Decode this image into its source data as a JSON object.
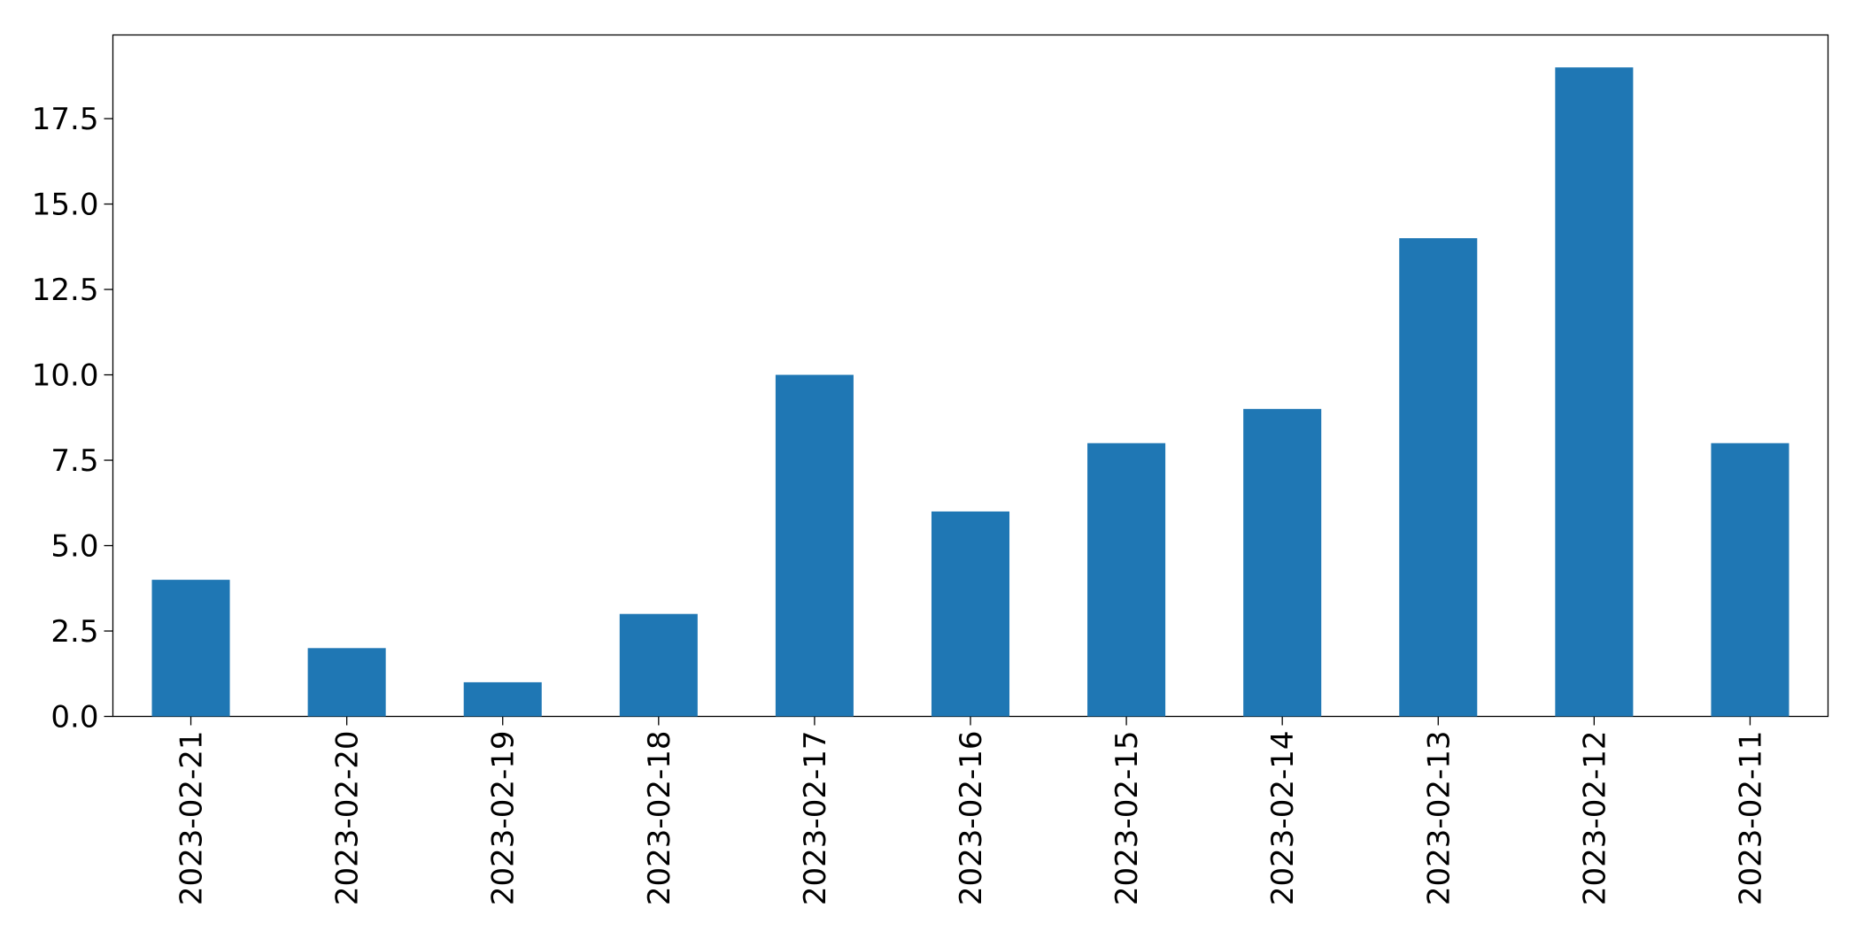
{
  "chart_data": {
    "type": "bar",
    "categories": [
      "2023-02-21",
      "2023-02-20",
      "2023-02-19",
      "2023-02-18",
      "2023-02-17",
      "2023-02-16",
      "2023-02-15",
      "2023-02-14",
      "2023-02-13",
      "2023-02-12",
      "2023-02-11"
    ],
    "values": [
      4,
      2,
      1,
      3,
      10,
      6,
      8,
      9,
      14,
      19,
      8
    ],
    "color": "#1f77b4",
    "ylim": [
      0,
      19.95
    ],
    "yticks": [
      {
        "value": 0,
        "label": "0.0"
      },
      2.5,
      {
        "value": 5,
        "label": "5.0"
      },
      7.5,
      {
        "value": 10,
        "label": "10.0"
      },
      12.5,
      {
        "value": 15,
        "label": "15.0"
      },
      17.5
    ],
    "grid": false
  }
}
